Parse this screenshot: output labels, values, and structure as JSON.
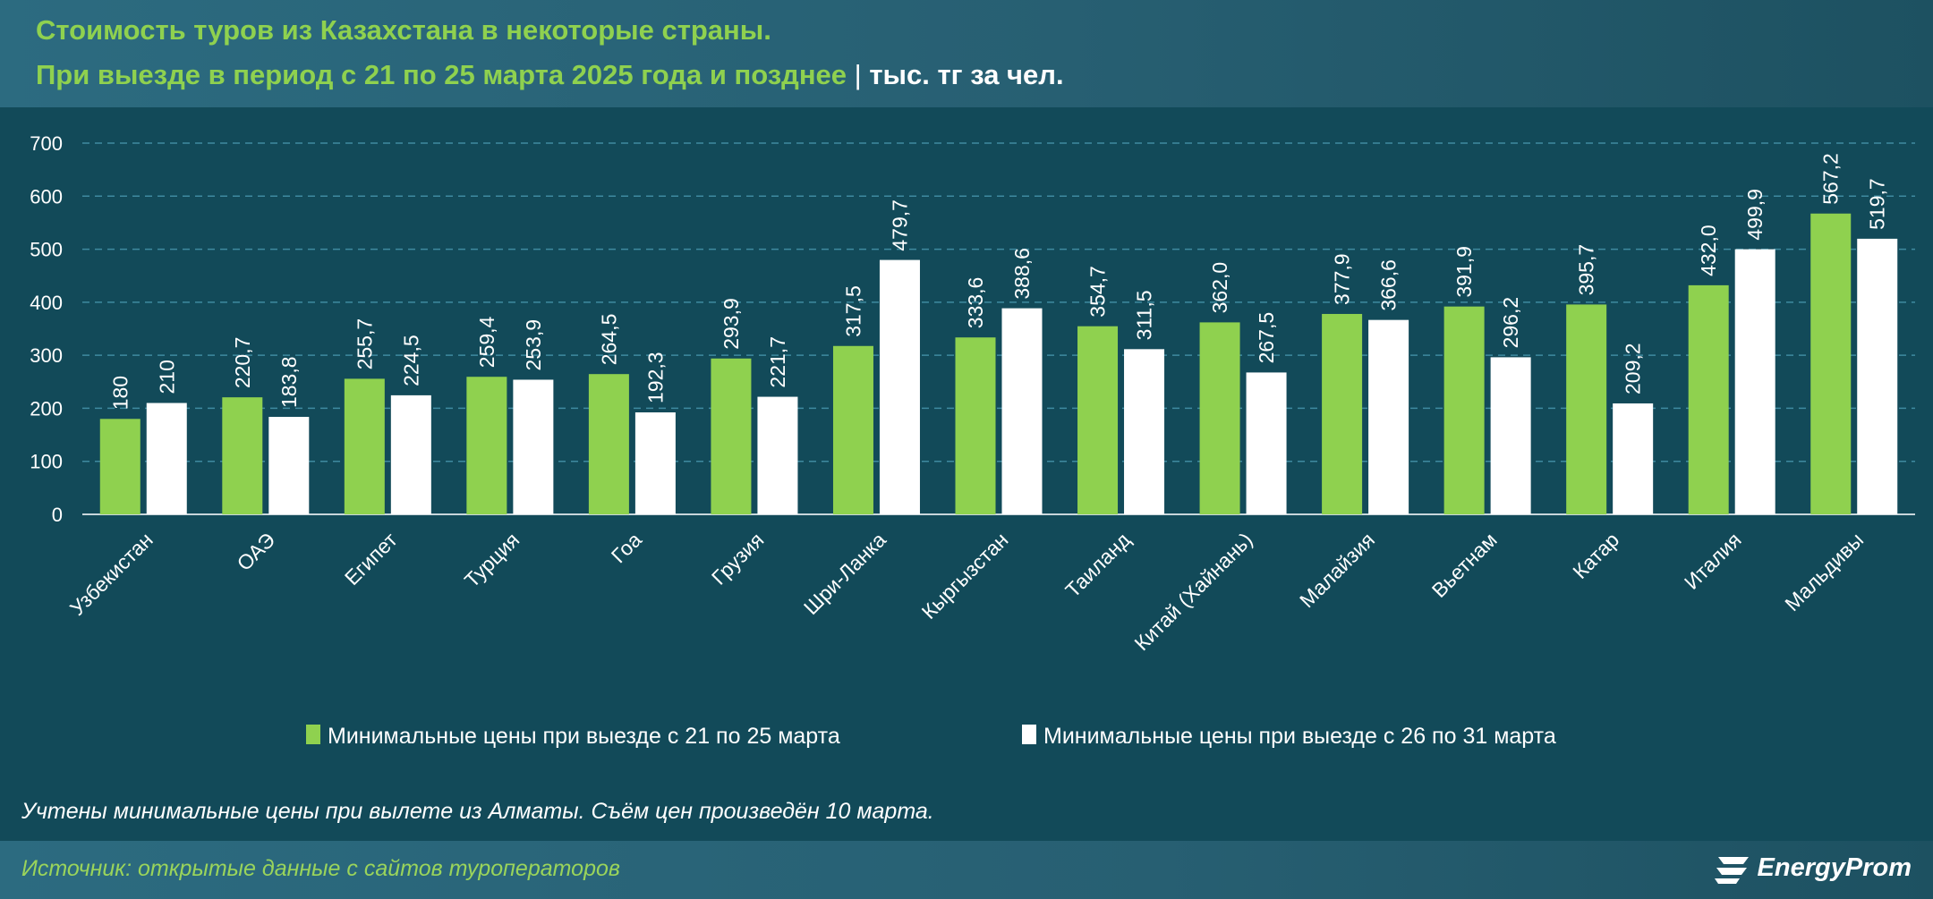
{
  "header": {
    "title_line1": "Стоимость туров из Казахстана в некоторые страны.",
    "title_line2": "При выезде в период с 21 по 25 марта 2025 года и позднее",
    "separator": "|",
    "unit": "тыс. тг за чел."
  },
  "chart_data": {
    "type": "bar",
    "categories": [
      "Узбекистан",
      "ОАЭ",
      "Египет",
      "Турция",
      "Гоа",
      "Грузия",
      "Шри-Ланка",
      "Кыргызстан",
      "Таиланд",
      "Китай (Хайнань)",
      "Малайзия",
      "Вьетнам",
      "Катар",
      "Италия",
      "Мальдивы"
    ],
    "series": [
      {
        "name": "Минимальные цены при выезде с 21 по 25 марта",
        "color": "#8fd14f",
        "values": [
          180,
          220.7,
          255.7,
          259.4,
          264.5,
          293.9,
          317.5,
          333.6,
          354.7,
          362.0,
          377.9,
          391.9,
          395.7,
          432.0,
          567.2
        ],
        "labels": [
          "180",
          "220,7",
          "255,7",
          "259,4",
          "264,5",
          "293,9",
          "317,5",
          "333,6",
          "354,7",
          "362,0",
          "377,9",
          "391,9",
          "395,7",
          "432,0",
          "567,2"
        ]
      },
      {
        "name": "Минимальные цены при выезде с 26 по 31 марта",
        "color": "#ffffff",
        "values": [
          210,
          183.8,
          224.5,
          253.9,
          192.3,
          221.7,
          479.7,
          388.6,
          311.5,
          267.5,
          366.6,
          296.2,
          209.2,
          499.9,
          519.7
        ],
        "labels": [
          "210",
          "183,8",
          "224,5",
          "253,9",
          "192,3",
          "221,7",
          "479,7",
          "388,6",
          "311,5",
          "267,5",
          "366,6",
          "296,2",
          "209,2",
          "499,9",
          "519,7"
        ]
      }
    ],
    "yticks": [
      0,
      100,
      200,
      300,
      400,
      500,
      600,
      700
    ],
    "ylim": [
      0,
      700
    ],
    "grid": true,
    "legend_position": "bottom"
  },
  "footnote": "Учтены минимальные цены при вылете из Алматы. Съём цен произведён 10 марта.",
  "footer": {
    "source": "Источник: открытые данные с сайтов туроператоров",
    "logo_text": "EnergyProm"
  }
}
